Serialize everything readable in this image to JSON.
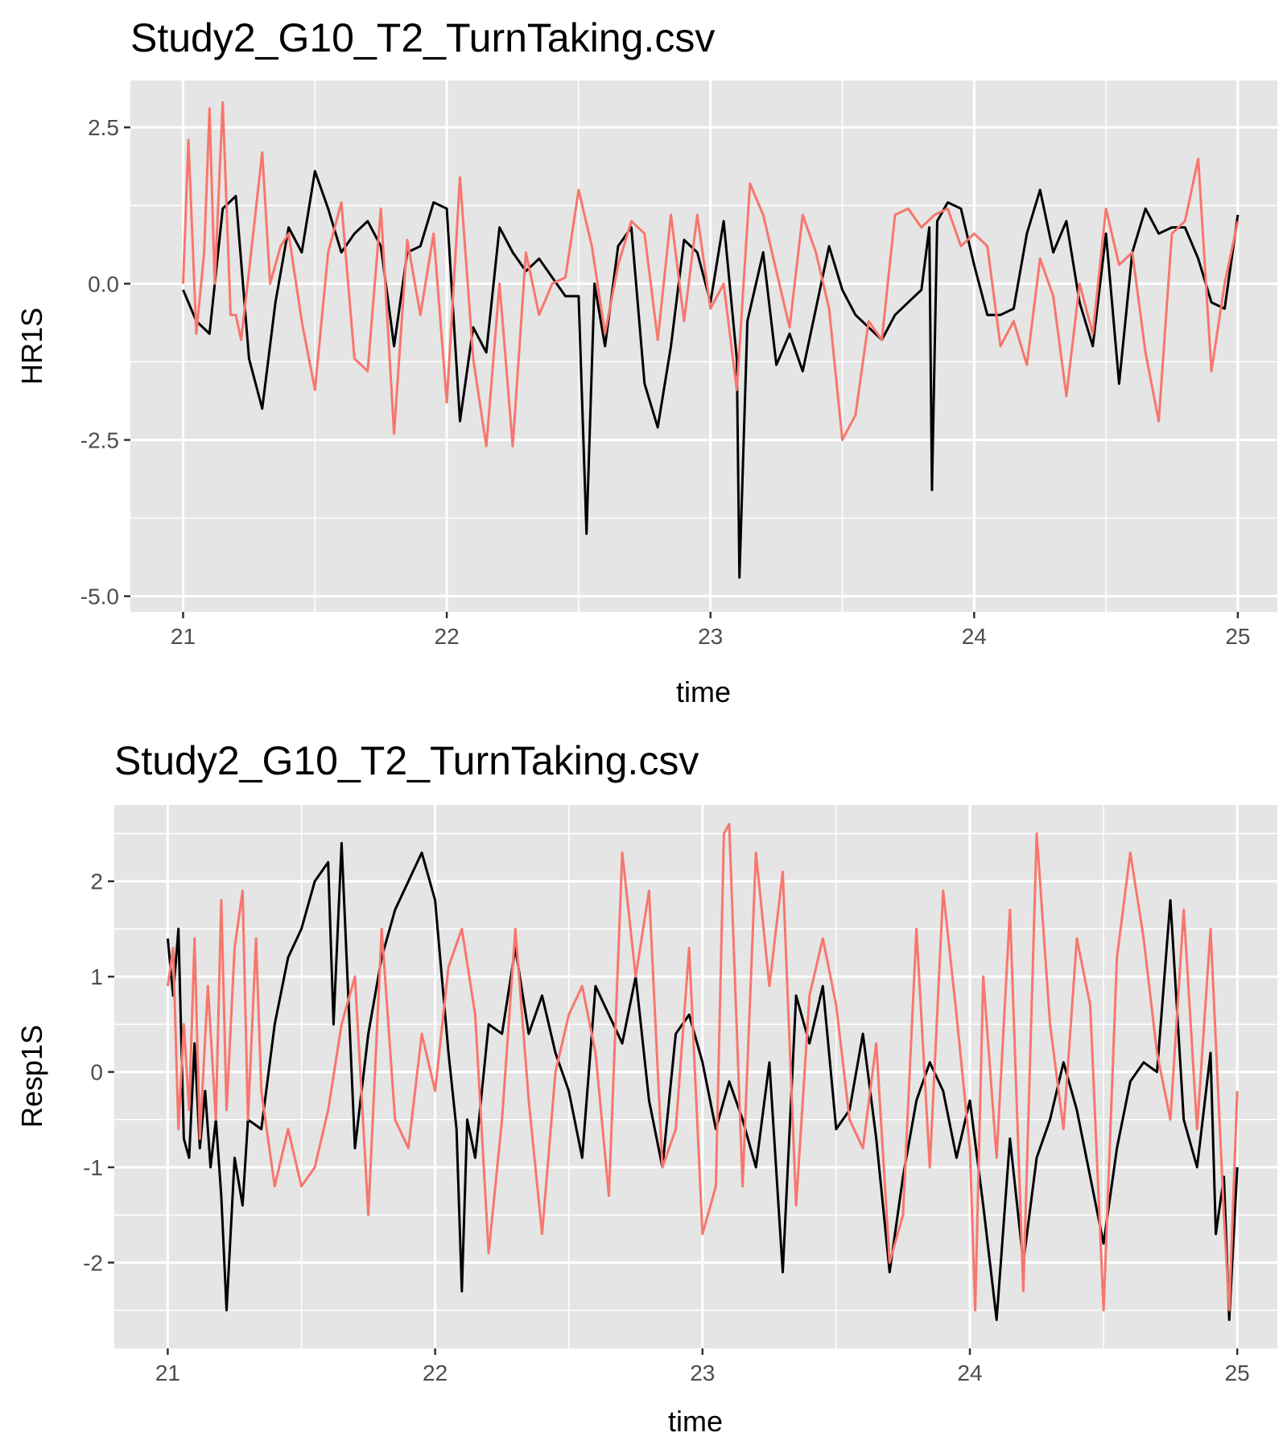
{
  "colors": {
    "series_black": "#000000",
    "series_red": "#f8766d",
    "panel": "#e5e5e5"
  },
  "chart_data": [
    {
      "type": "line",
      "title": "Study2_G10_T2_TurnTaking.csv",
      "xlabel": "time",
      "ylabel": "HR1S",
      "xlim": [
        20.8,
        25.15
      ],
      "ylim": [
        -5.25,
        3.25
      ],
      "x_ticks": [
        21,
        22,
        23,
        24,
        25
      ],
      "x_tick_labels": [
        "21",
        "22",
        "23",
        "24",
        "25"
      ],
      "y_ticks": [
        -5,
        -2.5,
        0,
        2.5
      ],
      "y_tick_labels": [
        "-5.0",
        "-2.5",
        "0.0",
        "2.5"
      ],
      "grid": true,
      "legend": "none",
      "series": [
        {
          "color": "#000000",
          "x": [
            21.0,
            21.05,
            21.1,
            21.15,
            21.2,
            21.25,
            21.3,
            21.35,
            21.4,
            21.45,
            21.5,
            21.55,
            21.6,
            21.65,
            21.7,
            21.75,
            21.8,
            21.85,
            21.9,
            21.95,
            22.0,
            22.05,
            22.1,
            22.15,
            22.2,
            22.25,
            22.3,
            22.35,
            22.4,
            22.45,
            22.5,
            22.53,
            22.56,
            22.6,
            22.65,
            22.7,
            22.75,
            22.8,
            22.85,
            22.9,
            22.95,
            23.0,
            23.05,
            23.1,
            23.11,
            23.14,
            23.2,
            23.25,
            23.3,
            23.35,
            23.4,
            23.45,
            23.5,
            23.55,
            23.6,
            23.65,
            23.7,
            23.75,
            23.8,
            23.83,
            23.84,
            23.86,
            23.9,
            23.95,
            24.0,
            24.05,
            24.1,
            24.15,
            24.2,
            24.25,
            24.3,
            24.35,
            24.4,
            24.45,
            24.5,
            24.55,
            24.6,
            24.65,
            24.7,
            24.75,
            24.8,
            24.85,
            24.9,
            24.95,
            25.0
          ],
          "y": [
            -0.1,
            -0.6,
            -0.8,
            1.2,
            1.4,
            -1.2,
            -2.0,
            -0.3,
            0.9,
            0.5,
            1.8,
            1.2,
            0.5,
            0.8,
            1.0,
            0.6,
            -1.0,
            0.5,
            0.6,
            1.3,
            1.2,
            -2.2,
            -0.7,
            -1.1,
            0.9,
            0.5,
            0.2,
            0.4,
            0.1,
            -0.2,
            -0.2,
            -4.0,
            0.0,
            -1.0,
            0.6,
            0.9,
            -1.6,
            -2.3,
            -1.0,
            0.7,
            0.5,
            -0.3,
            1.0,
            -1.2,
            -4.7,
            -0.6,
            0.5,
            -1.3,
            -0.8,
            -1.4,
            -0.4,
            0.6,
            -0.1,
            -0.5,
            -0.7,
            -0.9,
            -0.5,
            -0.3,
            -0.1,
            0.9,
            -3.3,
            1.0,
            1.3,
            1.2,
            0.3,
            -0.5,
            -0.5,
            -0.4,
            0.8,
            1.5,
            0.5,
            1.0,
            -0.3,
            -1.0,
            0.8,
            -1.6,
            0.5,
            1.2,
            0.8,
            0.9,
            0.9,
            0.4,
            -0.3,
            -0.4,
            1.1
          ]
        },
        {
          "color": "#f8766d",
          "x": [
            21.0,
            21.02,
            21.05,
            21.08,
            21.1,
            21.12,
            21.15,
            21.18,
            21.2,
            21.22,
            21.25,
            21.3,
            21.33,
            21.37,
            21.4,
            21.45,
            21.5,
            21.55,
            21.6,
            21.65,
            21.7,
            21.75,
            21.8,
            21.85,
            21.9,
            21.95,
            22.0,
            22.05,
            22.1,
            22.15,
            22.2,
            22.25,
            22.3,
            22.35,
            22.4,
            22.45,
            22.5,
            22.55,
            22.6,
            22.65,
            22.7,
            22.75,
            22.8,
            22.85,
            22.9,
            22.95,
            23.0,
            23.05,
            23.1,
            23.15,
            23.2,
            23.25,
            23.3,
            23.35,
            23.4,
            23.45,
            23.5,
            23.55,
            23.6,
            23.65,
            23.7,
            23.75,
            23.8,
            23.85,
            23.9,
            23.95,
            24.0,
            24.05,
            24.1,
            24.15,
            24.2,
            24.25,
            24.3,
            24.35,
            24.4,
            24.45,
            24.5,
            24.55,
            24.6,
            24.65,
            24.7,
            24.75,
            24.8,
            24.85,
            24.9,
            24.95,
            25.0
          ],
          "y": [
            0.0,
            2.3,
            -0.8,
            0.5,
            2.8,
            0.0,
            2.9,
            -0.5,
            -0.5,
            -0.9,
            0.2,
            2.1,
            0.0,
            0.6,
            0.8,
            -0.6,
            -1.7,
            0.5,
            1.3,
            -1.2,
            -1.4,
            1.2,
            -2.4,
            0.7,
            -0.5,
            0.8,
            -1.9,
            1.7,
            -1.2,
            -2.6,
            0.0,
            -2.6,
            0.5,
            -0.5,
            0.0,
            0.1,
            1.5,
            0.6,
            -0.8,
            0.3,
            1.0,
            0.8,
            -0.9,
            1.1,
            -0.6,
            1.1,
            -0.4,
            0.0,
            -1.7,
            1.6,
            1.1,
            0.2,
            -0.7,
            1.1,
            0.5,
            -0.4,
            -2.5,
            -2.1,
            -0.6,
            -0.9,
            1.1,
            1.2,
            0.9,
            1.1,
            1.2,
            0.6,
            0.8,
            0.6,
            -1.0,
            -0.6,
            -1.3,
            0.4,
            -0.2,
            -1.8,
            0.0,
            -0.8,
            1.2,
            0.3,
            0.5,
            -1.1,
            -2.2,
            0.8,
            1.0,
            2.0,
            -1.4,
            0.0,
            1.0
          ]
        }
      ]
    },
    {
      "type": "line",
      "title": "Study2_G10_T2_TurnTaking.csv",
      "xlabel": "time",
      "ylabel": "Resp1S",
      "xlim": [
        20.8,
        25.15
      ],
      "ylim": [
        -2.9,
        2.8
      ],
      "x_ticks": [
        21,
        22,
        23,
        24,
        25
      ],
      "x_tick_labels": [
        "21",
        "22",
        "23",
        "24",
        "25"
      ],
      "y_ticks": [
        -2,
        -1,
        0,
        1,
        2
      ],
      "y_tick_labels": [
        "-2",
        "-1",
        "0",
        "1",
        "2"
      ],
      "grid": true,
      "legend": "none",
      "series": [
        {
          "color": "#000000",
          "x": [
            21.0,
            21.02,
            21.04,
            21.06,
            21.08,
            21.1,
            21.12,
            21.14,
            21.16,
            21.18,
            21.2,
            21.22,
            21.25,
            21.28,
            21.3,
            21.35,
            21.4,
            21.45,
            21.5,
            21.55,
            21.6,
            21.62,
            21.65,
            21.7,
            21.75,
            21.8,
            21.85,
            21.9,
            21.95,
            22.0,
            22.05,
            22.08,
            22.1,
            22.12,
            22.15,
            22.2,
            22.25,
            22.3,
            22.35,
            22.4,
            22.45,
            22.5,
            22.55,
            22.6,
            22.65,
            22.7,
            22.75,
            22.8,
            22.85,
            22.9,
            22.95,
            23.0,
            23.05,
            23.1,
            23.15,
            23.2,
            23.25,
            23.3,
            23.35,
            23.4,
            23.45,
            23.5,
            23.55,
            23.6,
            23.65,
            23.7,
            23.75,
            23.8,
            23.85,
            23.9,
            23.95,
            24.0,
            24.05,
            24.1,
            24.15,
            24.2,
            24.25,
            24.3,
            24.35,
            24.4,
            24.45,
            24.5,
            24.55,
            24.6,
            24.65,
            24.7,
            24.75,
            24.8,
            24.85,
            24.9,
            24.92,
            24.95,
            24.97,
            25.0
          ],
          "y": [
            1.4,
            0.8,
            1.5,
            -0.7,
            -0.9,
            0.3,
            -0.8,
            -0.2,
            -1.0,
            -0.5,
            -1.3,
            -2.5,
            -0.9,
            -1.4,
            -0.5,
            -0.6,
            0.5,
            1.2,
            1.5,
            2.0,
            2.2,
            0.5,
            2.4,
            -0.8,
            0.4,
            1.2,
            1.7,
            2.0,
            2.3,
            1.8,
            0.2,
            -0.6,
            -2.3,
            -0.5,
            -0.9,
            0.5,
            0.4,
            1.3,
            0.4,
            0.8,
            0.2,
            -0.2,
            -0.9,
            0.9,
            0.6,
            0.3,
            1.0,
            -0.3,
            -1.0,
            0.4,
            0.6,
            0.1,
            -0.6,
            -0.1,
            -0.5,
            -1.0,
            0.1,
            -2.1,
            0.8,
            0.3,
            0.9,
            -0.6,
            -0.4,
            0.4,
            -0.7,
            -2.1,
            -1.1,
            -0.3,
            0.1,
            -0.2,
            -0.9,
            -0.3,
            -1.4,
            -2.6,
            -0.7,
            -2.0,
            -0.9,
            -0.5,
            0.1,
            -0.4,
            -1.1,
            -1.8,
            -0.8,
            -0.1,
            0.1,
            0.0,
            1.8,
            -0.5,
            -1.0,
            0.2,
            -1.7,
            -1.1,
            -2.6,
            -1.0
          ]
        },
        {
          "color": "#f8766d",
          "x": [
            21.0,
            21.02,
            21.04,
            21.06,
            21.08,
            21.1,
            21.12,
            21.15,
            21.18,
            21.2,
            21.22,
            21.25,
            21.28,
            21.3,
            21.33,
            21.35,
            21.4,
            21.45,
            21.5,
            21.55,
            21.6,
            21.65,
            21.7,
            21.75,
            21.8,
            21.85,
            21.9,
            21.95,
            22.0,
            22.05,
            22.1,
            22.15,
            22.2,
            22.25,
            22.3,
            22.35,
            22.4,
            22.45,
            22.5,
            22.55,
            22.6,
            22.65,
            22.7,
            22.75,
            22.8,
            22.85,
            22.9,
            22.95,
            23.0,
            23.05,
            23.08,
            23.1,
            23.15,
            23.2,
            23.25,
            23.3,
            23.35,
            23.4,
            23.45,
            23.5,
            23.55,
            23.6,
            23.65,
            23.7,
            23.75,
            23.8,
            23.85,
            23.9,
            23.95,
            24.0,
            24.02,
            24.05,
            24.1,
            24.15,
            24.2,
            24.25,
            24.3,
            24.35,
            24.4,
            24.45,
            24.5,
            24.55,
            24.6,
            24.65,
            24.7,
            24.75,
            24.8,
            24.85,
            24.9,
            24.95,
            24.97,
            25.0
          ],
          "y": [
            0.9,
            1.3,
            -0.6,
            0.5,
            -0.4,
            1.4,
            -0.7,
            0.9,
            -0.5,
            1.8,
            -0.4,
            1.3,
            1.9,
            -0.5,
            1.4,
            -0.2,
            -1.2,
            -0.6,
            -1.2,
            -1.0,
            -0.4,
            0.5,
            1.0,
            -1.5,
            1.5,
            -0.5,
            -0.8,
            0.4,
            -0.2,
            1.1,
            1.5,
            0.6,
            -1.9,
            -0.5,
            1.5,
            -0.3,
            -1.7,
            0.0,
            0.6,
            0.9,
            0.2,
            -1.3,
            2.3,
            1.0,
            1.9,
            -1.0,
            -0.6,
            1.3,
            -1.7,
            -1.2,
            2.5,
            2.6,
            -1.2,
            2.3,
            0.9,
            2.1,
            -1.4,
            0.8,
            1.4,
            0.7,
            -0.5,
            -0.8,
            0.3,
            -2.0,
            -1.5,
            1.5,
            -1.0,
            1.9,
            0.6,
            -0.8,
            -2.5,
            1.0,
            -0.9,
            1.7,
            -2.3,
            2.5,
            0.5,
            -0.6,
            1.4,
            0.7,
            -2.5,
            1.2,
            2.3,
            1.4,
            0.2,
            -0.5,
            1.7,
            -0.6,
            1.5,
            -1.5,
            -2.5,
            -0.2
          ]
        }
      ]
    }
  ]
}
